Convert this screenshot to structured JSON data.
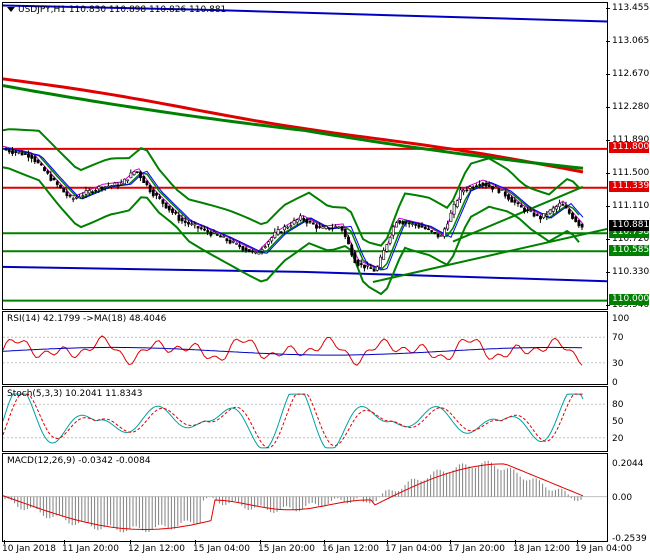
{
  "chart_title": "USDJPY,H1  110.830 110.898 110.826 110.881",
  "main_scale": [
    "113.455",
    "113.065",
    "112.670",
    "112.280",
    "111.890",
    "111.500",
    "111.110",
    "110.720",
    "110.330",
    "109.940"
  ],
  "horizontal_levels": [
    {
      "price": 111.8,
      "label": "111.800",
      "color": "#e00000"
    },
    {
      "price": 111.339,
      "label": "111.339",
      "color": "#e00000"
    },
    {
      "price": 110.798,
      "label": "110.798",
      "color": "#008000"
    },
    {
      "price": 110.585,
      "label": "110.585",
      "color": "#008000"
    },
    {
      "price": 110.0,
      "label": "110.000",
      "color": "#008000"
    }
  ],
  "current_price": {
    "label": "110.881"
  },
  "rsi": {
    "label": "RSI(14) 42.1799 ->MA(18) 48.4046",
    "scale": [
      "100",
      "70",
      "30",
      "0"
    ]
  },
  "stoch": {
    "label": "Stoch(5,3,3) 10.2041 11.8343",
    "scale": [
      "80",
      "50",
      "20"
    ]
  },
  "macd": {
    "label": "MACD(12,26,9) -0.0342 -0.0084",
    "scale": [
      "0.2044",
      "0.00",
      "-0.2539"
    ]
  },
  "x_ticks": [
    "10 Jan 2018",
    "11 Jan 20:00",
    "12 Jan 12:00",
    "15 Jan 04:00",
    "15 Jan 20:00",
    "16 Jan 12:00",
    "17 Jan 04:00",
    "17 Jan 20:00",
    "18 Jan 12:00",
    "19 Jan 04:00"
  ],
  "colors": {
    "up_candle": "#000000",
    "down_candle": "#000000",
    "ma_red": "#e00000",
    "ma_green": "#008000",
    "ma_blue": "#0000c0",
    "bollinger": "#008000",
    "rsi_line": "#e00000",
    "rsi_ma": "#0000c0",
    "stoch_main": "#00a0a0",
    "stoch_signal": "#e00000",
    "macd_hist": "#808080",
    "macd_signal": "#e00000"
  }
}
